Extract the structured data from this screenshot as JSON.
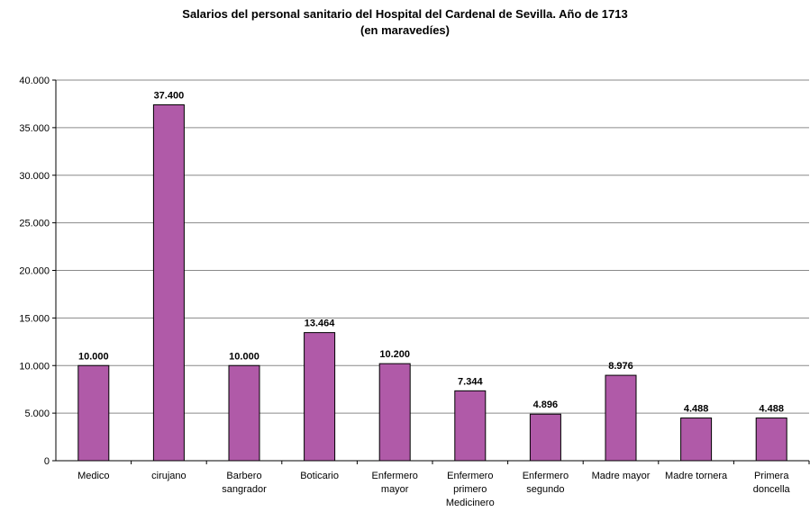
{
  "chart_data": {
    "type": "bar",
    "title": "Salarios del personal sanitario del Hospital del Cardenal de Sevilla. Año de 1713",
    "subtitle": "(en maravedíes)",
    "xlabel": "",
    "ylabel": "",
    "ylim": [
      0,
      40000
    ],
    "yticks": [
      0,
      5000,
      10000,
      15000,
      20000,
      25000,
      30000,
      35000,
      40000
    ],
    "ytick_labels": [
      "0",
      "5.000",
      "10.000",
      "15.000",
      "20.000",
      "25.000",
      "30.000",
      "35.000",
      "40.000"
    ],
    "grid": true,
    "legend": "none",
    "bar_color": "#b05aa8",
    "categories": [
      [
        "Medico"
      ],
      [
        "cirujano"
      ],
      [
        "Barbero",
        "sangrador"
      ],
      [
        "Boticario"
      ],
      [
        "Enfermero",
        "mayor"
      ],
      [
        "Enfermero",
        "primero",
        "Medicinero"
      ],
      [
        "Enfermero",
        "segundo"
      ],
      [
        "Madre mayor"
      ],
      [
        "Madre tornera"
      ],
      [
        "Primera",
        "doncella"
      ]
    ],
    "values": [
      10000,
      37400,
      10000,
      13464,
      10200,
      7344,
      4896,
      8976,
      4488,
      4488
    ],
    "data_labels": [
      "10.000",
      "37.400",
      "10.000",
      "13.464",
      "10.200",
      "7.344",
      "4.896",
      "8.976",
      "4.488",
      "4.488"
    ]
  }
}
